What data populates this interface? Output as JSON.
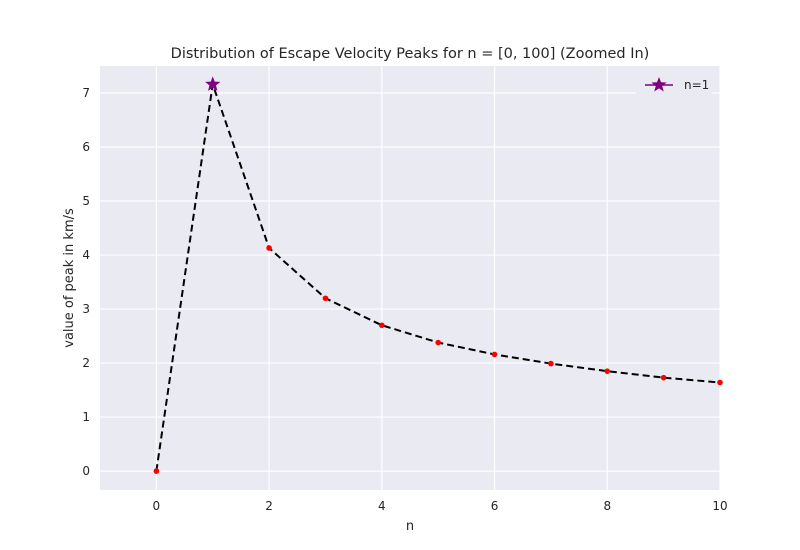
{
  "chart_data": {
    "type": "line",
    "title": "Distribution of Escape Velocity Peaks for n = [0, 100] (Zoomed In)",
    "xlabel": "n",
    "ylabel": "value of peak in km/s",
    "xlim": [
      -1,
      10
    ],
    "ylim": [
      -0.35,
      7.5
    ],
    "x_ticks": [
      0,
      2,
      4,
      6,
      8,
      10
    ],
    "y_ticks": [
      0,
      1,
      2,
      3,
      4,
      5,
      6,
      7
    ],
    "grid": true,
    "legend_position": "top-right",
    "series": [
      {
        "style": "dashed-line-with-dots",
        "line_color": "#000000",
        "marker_color": "#ff0000",
        "x": [
          0,
          1,
          2,
          3,
          4,
          5,
          6,
          7,
          8,
          9,
          10
        ],
        "y": [
          0,
          7.16,
          4.13,
          3.2,
          2.7,
          2.38,
          2.16,
          1.99,
          1.85,
          1.73,
          1.64
        ]
      }
    ],
    "highlight": {
      "name": "n=1",
      "x": 1,
      "y": 7.16,
      "marker": "star",
      "color": "#800080"
    }
  }
}
